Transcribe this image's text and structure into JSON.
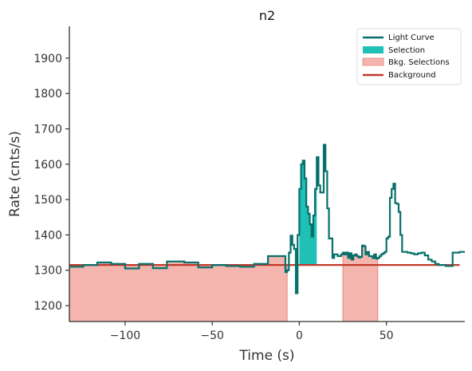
{
  "chart_data": {
    "type": "line",
    "title": "n2",
    "xlabel": "Time (s)",
    "ylabel": "Rate (cnts/s)",
    "xlim": [
      -132,
      95
    ],
    "ylim": [
      1155,
      1990
    ],
    "xticks": [
      -100,
      -50,
      0,
      50
    ],
    "xtick_labels": [
      "−100",
      "−50",
      "0",
      "50"
    ],
    "yticks": [
      1200,
      1300,
      1400,
      1500,
      1600,
      1700,
      1800,
      1900
    ],
    "ytick_labels": [
      "1200",
      "1300",
      "1400",
      "1500",
      "1600",
      "1700",
      "1800",
      "1900"
    ],
    "grid": false,
    "legend_position": "top-right",
    "legend": [
      {
        "label": "Light Curve",
        "kind": "line",
        "color": "#08706b"
      },
      {
        "label": "Selection",
        "kind": "patch",
        "color": "#1fc0b5"
      },
      {
        "label": "Bkg. Selections",
        "kind": "patch",
        "color": "#f3b5ae"
      },
      {
        "label": "Background",
        "kind": "line",
        "color": "#c0392b"
      }
    ],
    "background_level": 1315,
    "background_x": [
      -132,
      92
    ],
    "selection": [
      0,
      10
    ],
    "bkg_selections": [
      [
        -132,
        -7
      ],
      [
        25,
        45
      ]
    ],
    "light_curve": {
      "x": [
        -132,
        -124,
        -116,
        -108,
        -100,
        -92,
        -84,
        -76,
        -66,
        -58,
        -50,
        -42,
        -34,
        -26,
        -18,
        -12,
        -8,
        -7,
        -6,
        -5,
        -4,
        -3,
        -2,
        -1,
        0,
        1,
        2,
        3,
        4,
        5,
        6,
        7,
        8,
        9,
        10,
        11,
        12,
        13,
        14,
        15,
        16,
        17,
        18,
        19,
        20,
        21,
        22,
        23,
        24,
        25,
        26,
        27,
        28,
        29,
        30,
        31,
        32,
        33,
        34,
        35,
        36,
        37,
        38,
        39,
        40,
        41,
        42,
        43,
        44,
        45,
        46,
        47,
        48,
        49,
        50,
        51,
        52,
        53,
        54,
        55,
        56,
        57,
        58,
        59,
        60,
        62,
        64,
        66,
        68,
        70,
        72,
        74,
        76,
        78,
        80,
        84,
        88,
        92
      ],
      "y": [
        1310,
        1315,
        1322,
        1318,
        1305,
        1318,
        1306,
        1325,
        1322,
        1308,
        1315,
        1312,
        1310,
        1318,
        1340,
        1340,
        1295,
        1300,
        1350,
        1398,
        1372,
        1360,
        1235,
        1400,
        1530,
        1600,
        1610,
        1560,
        1480,
        1460,
        1430,
        1395,
        1455,
        1530,
        1620,
        1540,
        1520,
        1520,
        1655,
        1580,
        1475,
        1390,
        1390,
        1335,
        1345,
        1345,
        1340,
        1340,
        1345,
        1350,
        1345,
        1350,
        1335,
        1348,
        1330,
        1342,
        1345,
        1340,
        1336,
        1338,
        1370,
        1368,
        1345,
        1352,
        1340,
        1340,
        1335,
        1345,
        1333,
        1335,
        1340,
        1345,
        1348,
        1352,
        1390,
        1395,
        1505,
        1530,
        1545,
        1490,
        1488,
        1465,
        1400,
        1352,
        1352,
        1350,
        1348,
        1345,
        1348,
        1350,
        1342,
        1330,
        1325,
        1318,
        1315,
        1312,
        1350,
        1352
      ]
    }
  }
}
